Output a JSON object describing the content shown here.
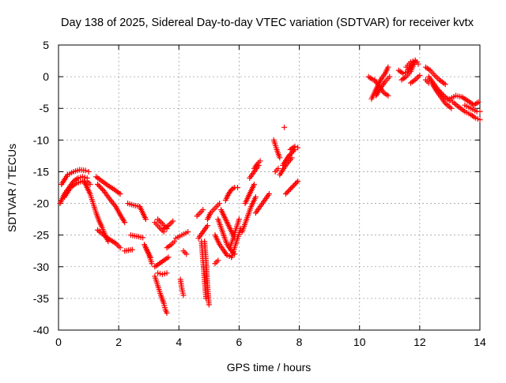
{
  "chart_data": {
    "type": "scatter",
    "title": "Day 138 of 2025, Sidereal Day-to-day VTEC variation (SDTVAR) for receiver kvtx",
    "xlabel": "GPS time / hours",
    "ylabel": "SDTVAR / TECUs",
    "xlim": [
      0,
      14
    ],
    "ylim": [
      -40,
      5
    ],
    "xticks": [
      "0",
      "2",
      "4",
      "6",
      "8",
      "10",
      "12",
      "14"
    ],
    "yticks": [
      "5",
      "0",
      "-5",
      "-10",
      "-15",
      "-20",
      "-25",
      "-30",
      "-35",
      "-40"
    ],
    "grid": true,
    "marker": "+",
    "series_color": "#ff0000",
    "tracks": [
      {
        "x": [
          0.05,
          0.2,
          0.35,
          0.5,
          0.65,
          0.8,
          0.95
        ],
        "y": [
          -20,
          -18.5,
          -17.5,
          -16.5,
          -16,
          -15.8,
          -16
        ]
      },
      {
        "x": [
          0.1,
          0.3,
          0.5,
          0.7,
          0.9,
          1.0
        ],
        "y": [
          -17,
          -15.5,
          -15,
          -14.7,
          -14.8,
          -15
        ]
      },
      {
        "x": [
          0.2,
          0.4,
          0.6,
          0.8,
          0.95,
          1.05
        ],
        "y": [
          -19,
          -17.5,
          -16.8,
          -16.5,
          -16.5,
          -17
        ]
      },
      {
        "x": [
          0.85,
          0.95,
          1.05,
          1.15,
          1.25,
          1.35,
          1.45,
          1.55,
          1.65
        ],
        "y": [
          -16.5,
          -17.5,
          -18.5,
          -20,
          -21.5,
          -22.8,
          -23.8,
          -25,
          -26
        ]
      },
      {
        "x": [
          1.25,
          1.45,
          1.65,
          1.85,
          2.05
        ],
        "y": [
          -15.8,
          -16.5,
          -17.2,
          -17.8,
          -18.5
        ]
      },
      {
        "x": [
          1.3,
          1.5,
          1.7,
          1.9,
          2.05,
          2.2
        ],
        "y": [
          -17,
          -18,
          -19.3,
          -20.5,
          -21.8,
          -23
        ]
      },
      {
        "x": [
          1.3,
          1.5,
          1.7,
          1.9,
          2.05
        ],
        "y": [
          -24.2,
          -25,
          -25.7,
          -26.3,
          -27
        ]
      },
      {
        "x": [
          2.3,
          2.5,
          2.7
        ],
        "y": [
          -20,
          -20.3,
          -20.5
        ]
      },
      {
        "x": [
          2.4,
          2.6,
          2.8
        ],
        "y": [
          -25,
          -25.2,
          -25.4
        ]
      },
      {
        "x": [
          2.2,
          2.45
        ],
        "y": [
          -27.5,
          -27.3
        ]
      },
      {
        "x": [
          2.7,
          2.8,
          2.9
        ],
        "y": [
          -20.5,
          -21.5,
          -22.5
        ]
      },
      {
        "x": [
          2.85,
          2.95,
          3.05
        ],
        "y": [
          -26.5,
          -27.5,
          -28.5
        ]
      },
      {
        "x": [
          2.9,
          3.0,
          3.1
        ],
        "y": [
          -27,
          -28,
          -29.5
        ]
      },
      {
        "x": [
          3.2,
          3.35,
          3.5
        ],
        "y": [
          -23,
          -23.8,
          -24.5
        ]
      },
      {
        "x": [
          3.3,
          3.45,
          3.6
        ],
        "y": [
          -22.5,
          -23.2,
          -24
        ]
      },
      {
        "x": [
          3.5,
          3.65,
          3.8
        ],
        "y": [
          -24,
          -23.5,
          -22.8
        ]
      },
      {
        "x": [
          3.2,
          3.35,
          3.5,
          3.65
        ],
        "y": [
          -30,
          -29.5,
          -29,
          -28.5
        ]
      },
      {
        "x": [
          3.6,
          3.75,
          3.85
        ],
        "y": [
          -27,
          -26.5,
          -26
        ]
      },
      {
        "x": [
          3.2,
          3.3,
          3.4,
          3.5,
          3.55,
          3.6
        ],
        "y": [
          -31.5,
          -33,
          -34.5,
          -35.8,
          -36.8,
          -37.3
        ]
      },
      {
        "x": [
          3.3,
          3.45,
          3.6
        ],
        "y": [
          -31,
          -31.2,
          -31
        ]
      },
      {
        "x": [
          3.9,
          4.1,
          4.3
        ],
        "y": [
          -25.5,
          -25,
          -24.5
        ]
      },
      {
        "x": [
          4.05,
          4.1,
          4.15
        ],
        "y": [
          -32,
          -33.5,
          -34.5
        ]
      },
      {
        "x": [
          4.15,
          4.25
        ],
        "y": [
          -27.5,
          -28
        ]
      },
      {
        "x": [
          4.6,
          4.7,
          4.8
        ],
        "y": [
          -22,
          -21.5,
          -21
        ]
      },
      {
        "x": [
          4.65,
          4.8,
          4.95
        ],
        "y": [
          -25.5,
          -24.5,
          -23.5
        ]
      },
      {
        "x": [
          4.75,
          4.8,
          4.85,
          4.9
        ],
        "y": [
          -26,
          -29,
          -32,
          -35
        ]
      },
      {
        "x": [
          4.85,
          4.9,
          4.95,
          5.0
        ],
        "y": [
          -26,
          -29,
          -33,
          -36
        ]
      },
      {
        "x": [
          4.95,
          5.05,
          5.15,
          5.25,
          5.35
        ],
        "y": [
          -22.5,
          -21.5,
          -21,
          -20.5,
          -20
        ]
      },
      {
        "x": [
          5.2,
          5.35,
          5.5,
          5.6,
          5.75
        ],
        "y": [
          -25,
          -26.5,
          -27.5,
          -28.2,
          -28.5
        ]
      },
      {
        "x": [
          5.3,
          5.45,
          5.6,
          5.75,
          5.85
        ],
        "y": [
          -22.5,
          -24.5,
          -26.5,
          -27.5,
          -28
        ]
      },
      {
        "x": [
          5.4,
          5.55,
          5.7,
          5.85
        ],
        "y": [
          -21,
          -22.5,
          -24,
          -25.5
        ]
      },
      {
        "x": [
          5.55,
          5.65,
          5.75,
          5.85,
          5.95
        ],
        "y": [
          -19.5,
          -18.5,
          -17.8,
          -17.5,
          -17.5
        ]
      },
      {
        "x": [
          5.7,
          5.8,
          5.9,
          6.0
        ],
        "y": [
          -27,
          -25.5,
          -24,
          -22.5
        ]
      },
      {
        "x": [
          5.75,
          5.85,
          5.95,
          6.05
        ],
        "y": [
          -28.5,
          -27,
          -25.5,
          -24
        ]
      },
      {
        "x": [
          5.2,
          5.3
        ],
        "y": [
          -29.5,
          -29
        ]
      },
      {
        "x": [
          6.1,
          6.25,
          6.4,
          6.55
        ],
        "y": [
          -24.5,
          -22.5,
          -20.5,
          -19
        ]
      },
      {
        "x": [
          6.2,
          6.35,
          6.5
        ],
        "y": [
          -20,
          -18.5,
          -17
        ]
      },
      {
        "x": [
          6.35,
          6.5,
          6.65
        ],
        "y": [
          -16,
          -15,
          -14
        ]
      },
      {
        "x": [
          6.5,
          6.6,
          6.7
        ],
        "y": [
          -14.5,
          -13.8,
          -13.3
        ]
      },
      {
        "x": [
          6.55,
          6.7,
          6.85,
          7.0
        ],
        "y": [
          -21.5,
          -20.5,
          -19.5,
          -18.5
        ]
      },
      {
        "x": [
          7.15,
          7.25,
          7.35
        ],
        "y": [
          -10,
          -11.5,
          -12.8
        ]
      },
      {
        "x": [
          7.35,
          7.55,
          7.75
        ],
        "y": [
          -15.5,
          -14,
          -12.8
        ]
      },
      {
        "x": [
          7.45,
          7.65,
          7.85
        ],
        "y": [
          -14,
          -12.5,
          -11.5
        ]
      },
      {
        "x": [
          7.5
        ],
        "y": [
          -8
        ]
      },
      {
        "x": [
          7.55,
          7.75,
          7.95
        ],
        "y": [
          -18.5,
          -17.5,
          -16.5
        ]
      },
      {
        "x": [
          7.7,
          7.85,
          7.95
        ],
        "y": [
          -11.5,
          -11,
          -11.2
        ]
      },
      {
        "x": [
          7.2,
          7.3
        ],
        "y": [
          -15,
          -14.5
        ]
      },
      {
        "x": [
          10.4,
          10.55,
          10.7,
          10.85,
          10.95
        ],
        "y": [
          -3.5,
          -2,
          -0.5,
          0.5,
          1.5
        ]
      },
      {
        "x": [
          10.55,
          10.7,
          10.85,
          11.0
        ],
        "y": [
          -3,
          -1.8,
          -0.8,
          0
        ]
      },
      {
        "x": [
          10.5,
          10.65,
          10.8,
          10.95
        ],
        "y": [
          -0.5,
          -1.5,
          -2.5,
          -3
        ]
      },
      {
        "x": [
          10.3,
          10.45
        ],
        "y": [
          0,
          -0.5
        ]
      },
      {
        "x": [
          11.3,
          11.45,
          11.6,
          11.75
        ],
        "y": [
          1,
          0.5,
          0.8,
          2
        ]
      },
      {
        "x": [
          11.4,
          11.55,
          11.7,
          11.85
        ],
        "y": [
          -0.5,
          0,
          0.8,
          2.5
        ]
      },
      {
        "x": [
          11.55,
          11.7,
          11.85,
          11.95
        ],
        "y": [
          1.5,
          2.3,
          2.6,
          2
        ]
      },
      {
        "x": [
          11.7,
          11.85,
          12.0
        ],
        "y": [
          -1,
          -0.5,
          0.2
        ]
      },
      {
        "x": [
          12.2,
          12.35,
          12.5,
          12.65,
          12.85
        ],
        "y": [
          1.5,
          1,
          0.2,
          -0.5,
          -1.2
        ]
      },
      {
        "x": [
          12.3,
          12.45,
          12.6,
          12.8,
          13.0
        ],
        "y": [
          0,
          -1,
          -2,
          -3,
          -3.8
        ]
      },
      {
        "x": [
          12.4,
          12.55,
          12.7,
          12.85,
          13.05
        ],
        "y": [
          -1,
          -2.2,
          -3.2,
          -4.2,
          -5
        ]
      },
      {
        "x": [
          12.2,
          12.3
        ],
        "y": [
          -0.5,
          -1
        ]
      },
      {
        "x": [
          13.0,
          13.2,
          13.4,
          13.6,
          13.8,
          13.95
        ],
        "y": [
          -3.5,
          -3,
          -3.2,
          -3.8,
          -4.5,
          -4
        ]
      },
      {
        "x": [
          13.1,
          13.3,
          13.5,
          13.7,
          13.85,
          14.0
        ],
        "y": [
          -4,
          -4.8,
          -5.5,
          -6,
          -6.5,
          -6.8
        ]
      },
      {
        "x": [
          13.5,
          13.7,
          13.9,
          14.0
        ],
        "y": [
          -4.5,
          -5,
          -5.5,
          -5.5
        ]
      }
    ]
  }
}
